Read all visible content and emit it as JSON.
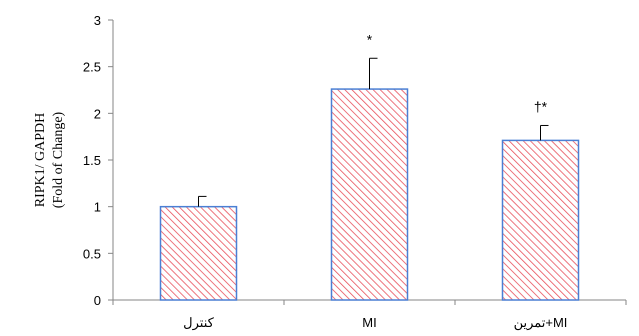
{
  "chart_data": {
    "type": "bar",
    "categories": [
      "کنترل",
      "MI",
      "تمرین+MI"
    ],
    "values": [
      1.0,
      2.26,
      1.71
    ],
    "errors": [
      0.11,
      0.33,
      0.16
    ],
    "annotations": [
      "",
      "*",
      "†*"
    ],
    "ylabel_line1": "RIPK1/  GAPDH",
    "ylabel_line2": "(Fold of Change)",
    "yticks": [
      "0",
      "0.5",
      "1",
      "1.5",
      "2",
      "2.5",
      "3"
    ],
    "ylim": [
      0,
      3
    ],
    "grid": false,
    "bar_fill_pattern": "diagonal-hatch",
    "hatch_color": "#e8505b",
    "bar_border_color": "#4a7fd4"
  }
}
